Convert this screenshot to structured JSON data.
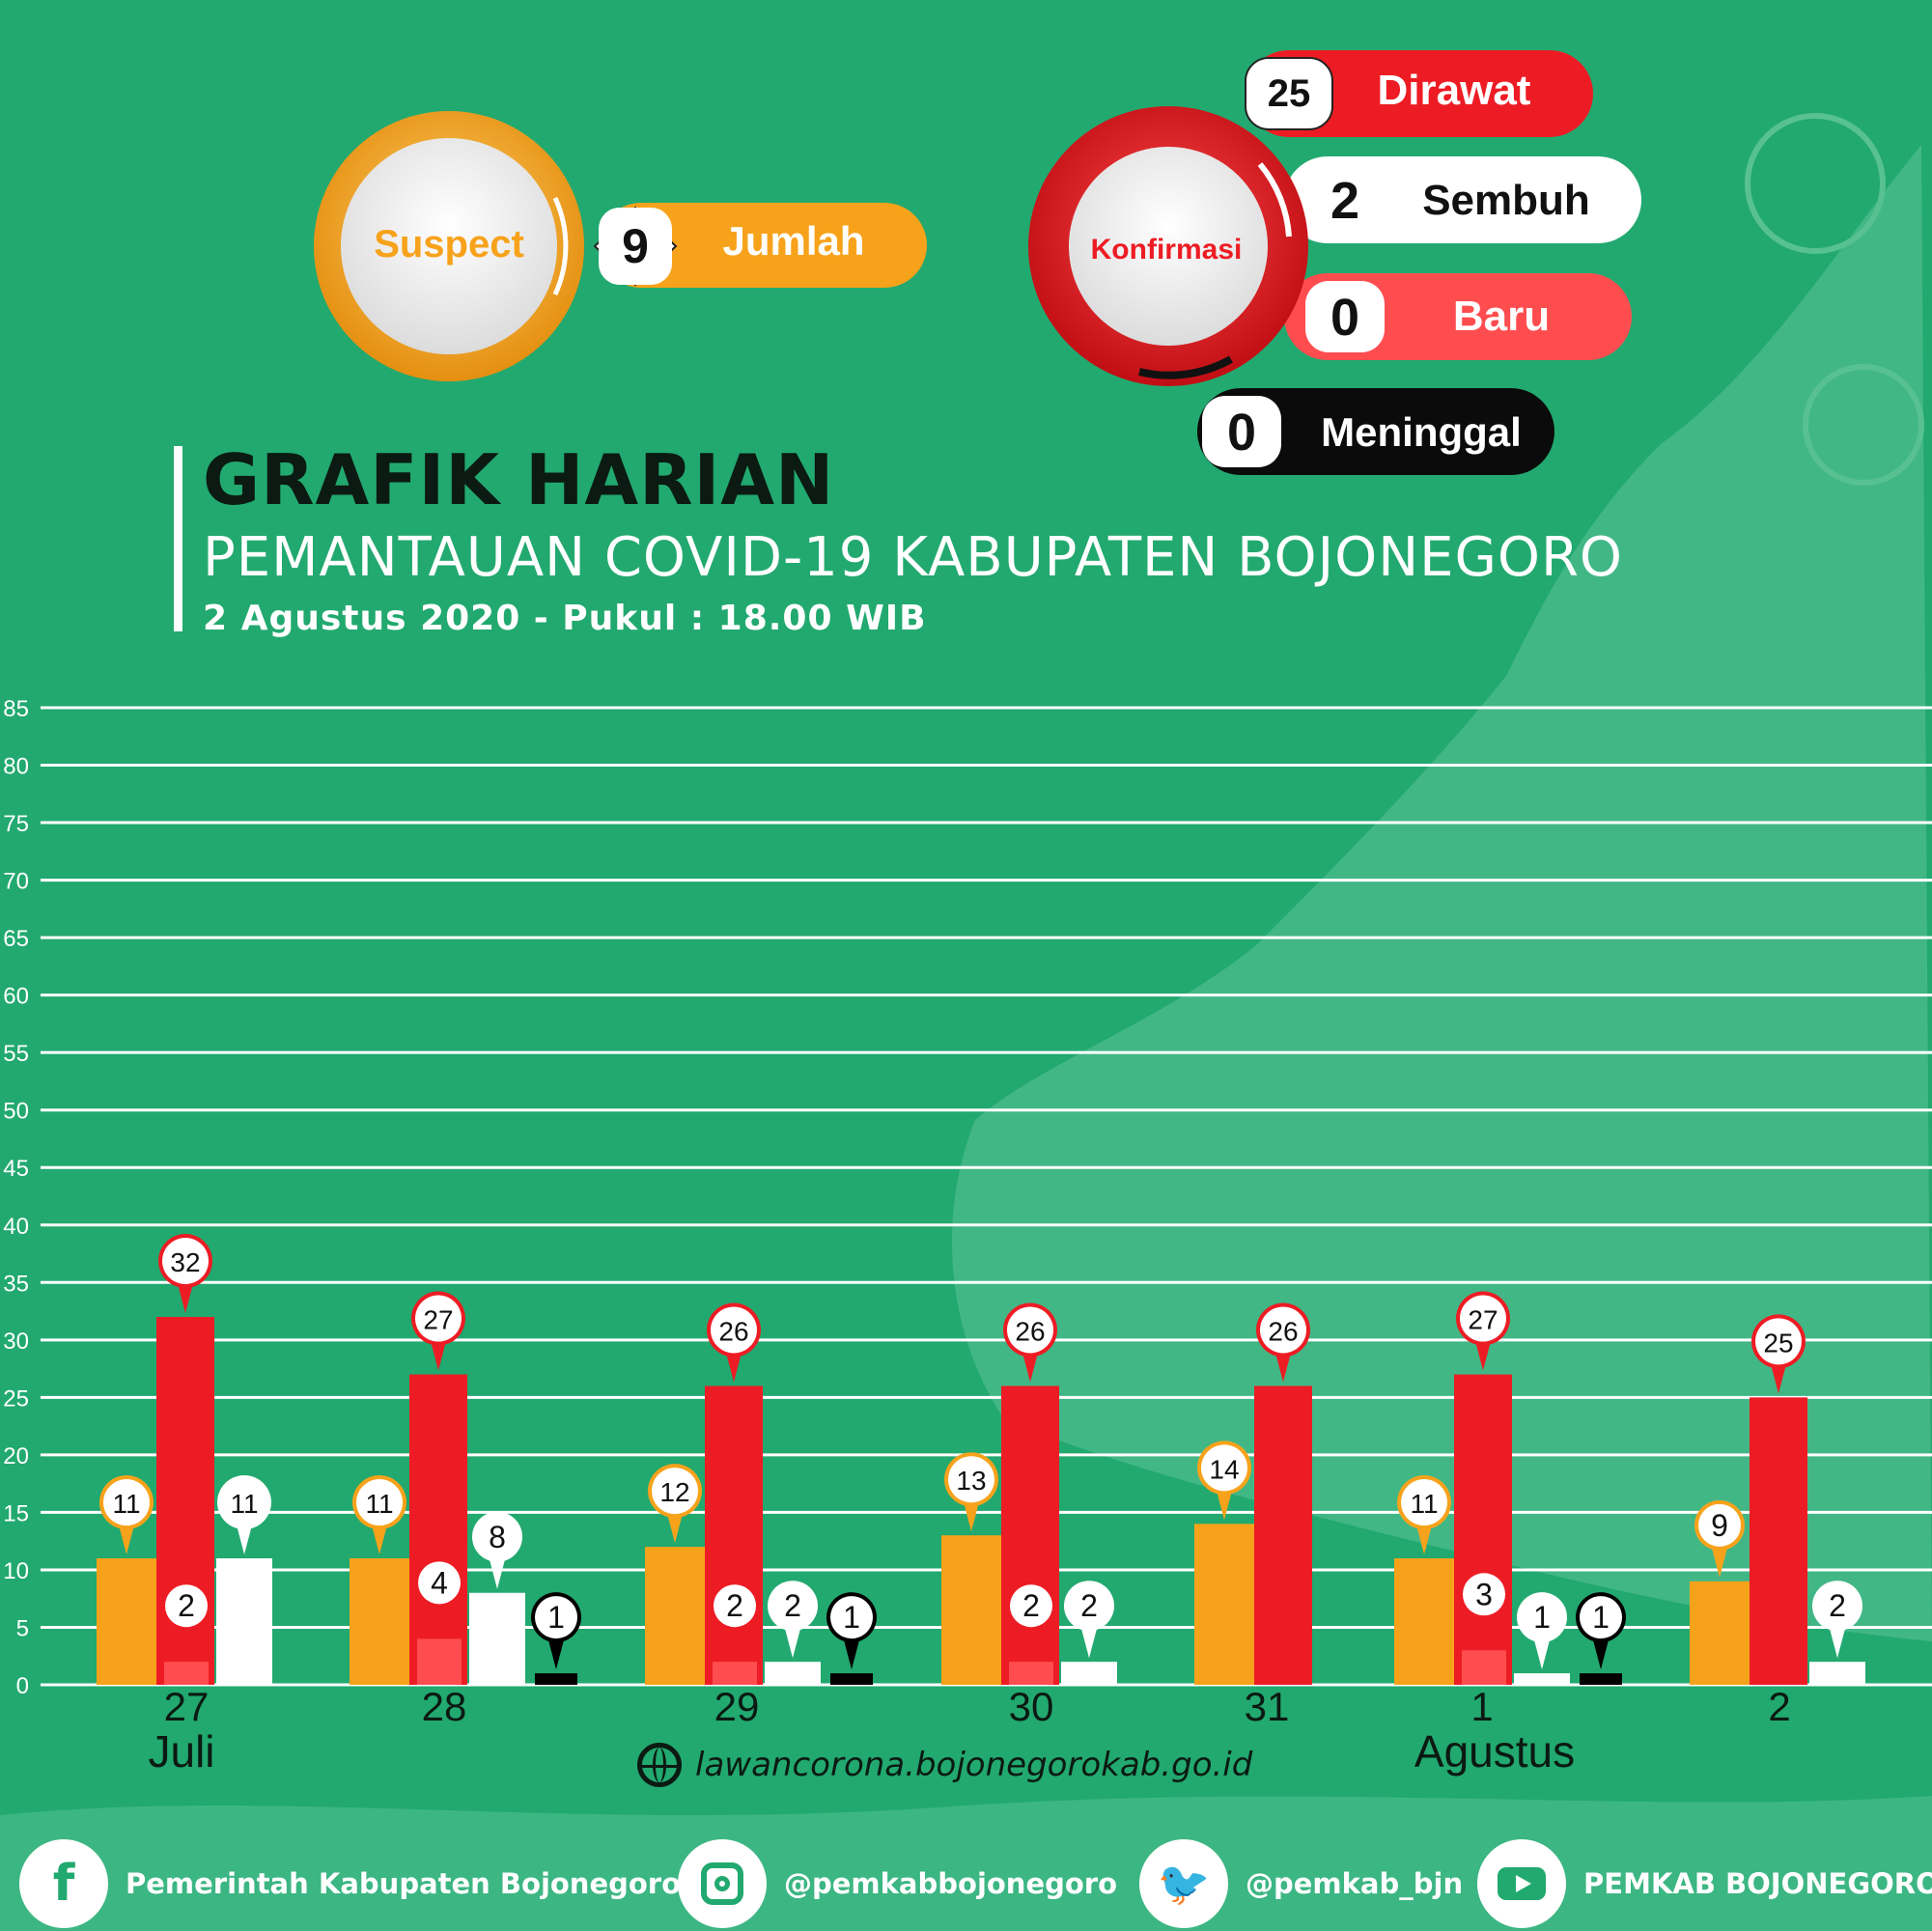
{
  "header": {
    "title": "GRAFIK HARIAN",
    "subtitle": "PEMANTAUAN COVID-19 KABUPATEN BOJONEGORO",
    "date_line": "2 Agustus 2020 - Pukul : 18.00 WIB"
  },
  "suspect": {
    "label": "Suspect",
    "value": "9",
    "value_label": "Jumlah"
  },
  "confirmed": {
    "label": "Konfirmasi",
    "items": [
      {
        "value": "25",
        "label": "Dirawat"
      },
      {
        "value": "2",
        "label": "Sembuh"
      },
      {
        "value": "0",
        "label": "Baru"
      },
      {
        "value": "0",
        "label": "Meninggal"
      }
    ]
  },
  "colors": {
    "background": "#22a96f",
    "suspect": "#f7a21b",
    "dirawat": "#ed1c24",
    "baru": "#ff4d4f",
    "sembuh": "#ffffff",
    "meninggal": "#000000"
  },
  "chart_data": {
    "type": "bar",
    "categories": [
      "27",
      "28",
      "29",
      "30",
      "31",
      "1",
      "2"
    ],
    "month_labels": [
      {
        "text": "Juli",
        "at": "27"
      },
      {
        "text": "Agustus",
        "at": "1"
      }
    ],
    "series": [
      {
        "key": "suspect",
        "values": [
          11,
          11,
          12,
          13,
          14,
          11,
          9
        ]
      },
      {
        "key": "dirawat",
        "values": [
          32,
          27,
          26,
          26,
          26,
          27,
          25
        ]
      },
      {
        "key": "baru",
        "values": [
          2,
          4,
          2,
          2,
          null,
          3,
          null
        ]
      },
      {
        "key": "sembuh",
        "values": [
          11,
          8,
          2,
          2,
          null,
          1,
          2
        ]
      },
      {
        "key": "meninggal",
        "values": [
          null,
          1,
          1,
          null,
          null,
          1,
          null
        ]
      }
    ],
    "ylim": [
      0,
      85
    ],
    "yticks": [
      0,
      5,
      10,
      15,
      20,
      25,
      30,
      35,
      40,
      45,
      50,
      55,
      60,
      65,
      70,
      75,
      80,
      85
    ],
    "grid": true
  },
  "url": "lawancorona.bojonegorokab.go.id",
  "footer": {
    "facebook": "Pemerintah Kabupaten Bojonegoro",
    "instagram": "@pemkabbojonegoro",
    "twitter": "@pemkab_bjn",
    "youtube": "PEMKAB BOJONEGORO"
  }
}
